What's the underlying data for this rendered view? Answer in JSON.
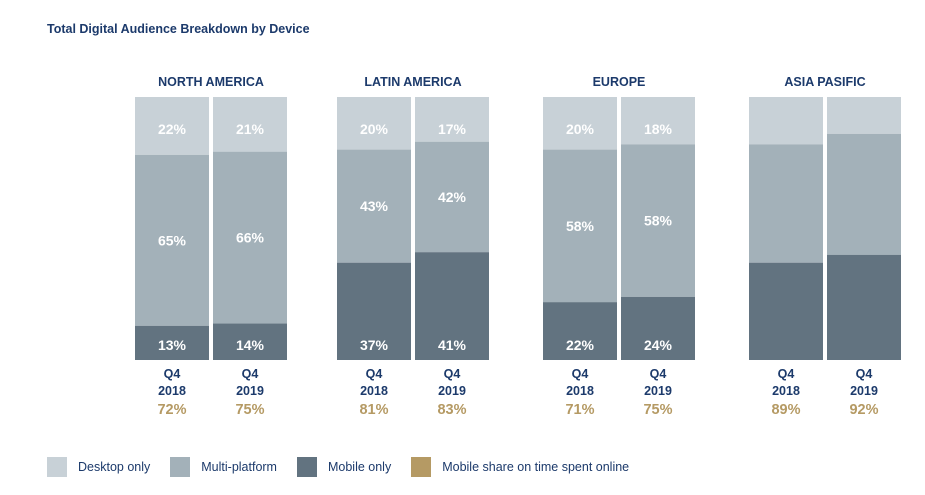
{
  "title": "Total Digital Audience Breakdown by Device",
  "colors": {
    "desktop": "#c8d1d7",
    "multi": "#a3b1b9",
    "mobile": "#627380",
    "share": "#b59a64",
    "navy": "#1c3a6b"
  },
  "legend": [
    {
      "label": "Desktop only",
      "color": "#c8d1d7"
    },
    {
      "label": "Multi-platform",
      "color": "#a3b1b9"
    },
    {
      "label": "Mobile only",
      "color": "#627380"
    },
    {
      "label": "Mobile share on time spent online",
      "color": "#b59a64"
    }
  ],
  "chart_data": {
    "type": "bar",
    "stacked": true,
    "series_order": [
      "Mobile only",
      "Multi-platform",
      "Desktop only"
    ],
    "groups": [
      {
        "name": "NORTH AMERICA",
        "bars": [
          {
            "period": "Q4",
            "year": "2018",
            "desktop": 22,
            "multi": 65,
            "mobile": 13,
            "mobile_share": "72%",
            "labels": [
              "22%",
              "65%",
              "13%"
            ]
          },
          {
            "period": "Q4",
            "year": "2019",
            "desktop": 21,
            "multi": 66,
            "mobile": 14,
            "mobile_share": "75%",
            "labels": [
              "21%",
              "66%",
              "14%"
            ]
          }
        ]
      },
      {
        "name": "LATIN AMERICA",
        "bars": [
          {
            "period": "Q4",
            "year": "2018",
            "desktop": 20,
            "multi": 43,
            "mobile": 37,
            "mobile_share": "81%",
            "labels": [
              "20%",
              "43%",
              "37%"
            ]
          },
          {
            "period": "Q4",
            "year": "2019",
            "desktop": 17,
            "multi": 42,
            "mobile": 41,
            "mobile_share": "83%",
            "labels": [
              "17%",
              "42%",
              "41%"
            ]
          }
        ]
      },
      {
        "name": "EUROPE",
        "bars": [
          {
            "period": "Q4",
            "year": "2018",
            "desktop": 20,
            "multi": 58,
            "mobile": 22,
            "mobile_share": "71%",
            "labels": [
              "20%",
              "58%",
              "22%"
            ]
          },
          {
            "period": "Q4",
            "year": "2019",
            "desktop": 18,
            "multi": 58,
            "mobile": 24,
            "mobile_share": "75%",
            "labels": [
              "18%",
              "58%",
              "24%"
            ]
          }
        ]
      },
      {
        "name": "ASIA PASIFIC",
        "bars": [
          {
            "period": "Q4",
            "year": "2018",
            "desktop": 18,
            "multi": 45,
            "mobile": 37,
            "mobile_share": "89%",
            "labels": [
              "",
              "",
              ""
            ]
          },
          {
            "period": "Q4",
            "year": "2019",
            "desktop": 14,
            "multi": 46,
            "mobile": 40,
            "mobile_share": "92%",
            "labels": [
              "",
              "",
              ""
            ]
          }
        ]
      }
    ]
  }
}
